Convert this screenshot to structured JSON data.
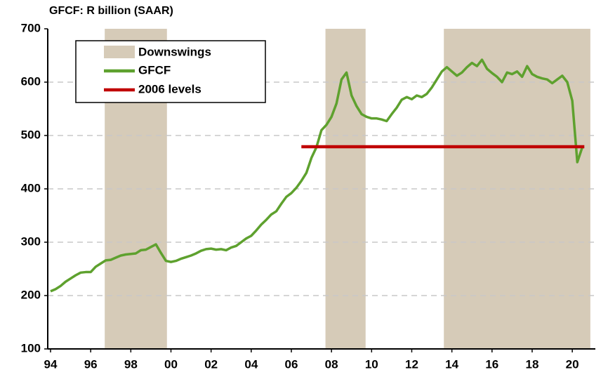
{
  "chart_data": {
    "type": "line",
    "title": "GFCF: R billion (SAAR)",
    "xlim": [
      1993.86,
      2021.15
    ],
    "ylim": [
      100,
      700
    ],
    "xticks": [
      {
        "value": 1994,
        "label": "94"
      },
      {
        "value": 1996,
        "label": "96"
      },
      {
        "value": 1998,
        "label": "98"
      },
      {
        "value": 2000,
        "label": "00"
      },
      {
        "value": 2002,
        "label": "02"
      },
      {
        "value": 2004,
        "label": "04"
      },
      {
        "value": 2006,
        "label": "06"
      },
      {
        "value": 2008,
        "label": "08"
      },
      {
        "value": 2010,
        "label": "10"
      },
      {
        "value": 2012,
        "label": "12"
      },
      {
        "value": 2014,
        "label": "14"
      },
      {
        "value": 2016,
        "label": "16"
      },
      {
        "value": 2018,
        "label": "18"
      },
      {
        "value": 2020,
        "label": "20"
      }
    ],
    "yticks": [
      100,
      200,
      300,
      400,
      500,
      600,
      700
    ],
    "grid": true,
    "legend": "upper left",
    "bands": {
      "name": "Downswings",
      "color": "#d6cbb8",
      "ranges": [
        [
          1996.7,
          1999.8
        ],
        [
          2007.7,
          2009.7
        ],
        [
          2013.6,
          2020.9
        ]
      ]
    },
    "series": [
      {
        "name": "GFCF",
        "color": "#5ea12e",
        "x": [
          1994,
          1994.25,
          1994.5,
          1994.75,
          1995,
          1995.25,
          1995.5,
          1995.75,
          1996,
          1996.25,
          1996.5,
          1996.75,
          1997,
          1997.25,
          1997.5,
          1997.75,
          1998,
          1998.25,
          1998.5,
          1998.75,
          1999,
          1999.25,
          1999.5,
          1999.75,
          2000,
          2000.25,
          2000.5,
          2000.75,
          2001,
          2001.25,
          2001.5,
          2001.75,
          2002,
          2002.25,
          2002.5,
          2002.75,
          2003,
          2003.25,
          2003.5,
          2003.75,
          2004,
          2004.25,
          2004.5,
          2004.75,
          2005,
          2005.25,
          2005.5,
          2005.75,
          2006,
          2006.25,
          2006.5,
          2006.75,
          2007,
          2007.25,
          2007.5,
          2007.75,
          2008,
          2008.25,
          2008.5,
          2008.75,
          2009,
          2009.25,
          2009.5,
          2009.75,
          2010,
          2010.25,
          2010.5,
          2010.75,
          2011,
          2011.25,
          2011.5,
          2011.75,
          2012,
          2012.25,
          2012.5,
          2012.75,
          2013,
          2013.25,
          2013.5,
          2013.75,
          2014,
          2014.25,
          2014.5,
          2014.75,
          2015,
          2015.25,
          2015.5,
          2015.75,
          2016,
          2016.25,
          2016.5,
          2016.75,
          2017,
          2017.25,
          2017.5,
          2017.75,
          2018,
          2018.25,
          2018.5,
          2018.75,
          2019,
          2019.25,
          2019.5,
          2019.75,
          2020,
          2020.25,
          2020.5
        ],
        "values": [
          208,
          212,
          218,
          226,
          232,
          238,
          243,
          244,
          244,
          254,
          260,
          266,
          267,
          271,
          275,
          277,
          278,
          279,
          285,
          286,
          291,
          296,
          280,
          265,
          263,
          265,
          269,
          272,
          275,
          279,
          284,
          287,
          288,
          286,
          287,
          285,
          290,
          293,
          300,
          307,
          312,
          322,
          333,
          342,
          352,
          358,
          372,
          385,
          392,
          402,
          415,
          430,
          458,
          478,
          510,
          520,
          535,
          560,
          605,
          618,
          575,
          555,
          540,
          535,
          532,
          532,
          530,
          527,
          540,
          552,
          567,
          572,
          568,
          575,
          572,
          578,
          590,
          605,
          620,
          628,
          620,
          612,
          618,
          628,
          636,
          630,
          642,
          625,
          617,
          610,
          600,
          618,
          615,
          620,
          610,
          630,
          615,
          610,
          607,
          605,
          598,
          605,
          612,
          600,
          565,
          450,
          478
        ]
      },
      {
        "name": "2006 levels",
        "color": "#c00000",
        "x": [
          2006.5,
          2020.6
        ],
        "values": [
          479,
          479
        ]
      }
    ]
  }
}
